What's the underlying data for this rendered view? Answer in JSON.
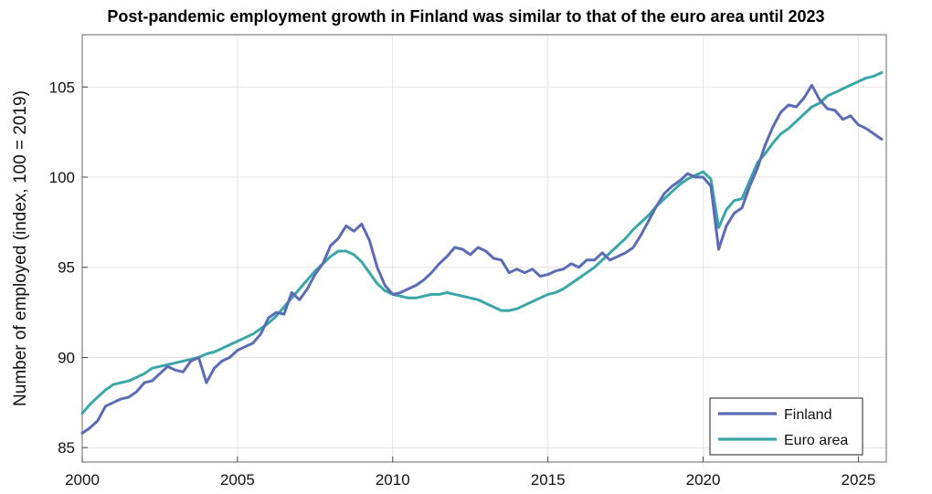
{
  "chart_data": {
    "type": "line",
    "title": "Post-pandemic employment growth in Finland was similar to that of the euro area until 2023",
    "xlabel": "",
    "ylabel": "Number of employed (index, 100 = 2019)",
    "xlim": [
      2000,
      2025.9
    ],
    "ylim": [
      84.2,
      107.9
    ],
    "xticks": [
      2000,
      2005,
      2010,
      2015,
      2020,
      2025
    ],
    "yticks": [
      85,
      90,
      95,
      100,
      105
    ],
    "grid": true,
    "legend_position": "bottom-right",
    "series": [
      {
        "name": "Finland",
        "color": "#5b6bb5",
        "points": [
          [
            2000.0,
            85.8
          ],
          [
            2000.25,
            86.1
          ],
          [
            2000.5,
            86.5
          ],
          [
            2000.75,
            87.3
          ],
          [
            2001.0,
            87.5
          ],
          [
            2001.25,
            87.7
          ],
          [
            2001.5,
            87.8
          ],
          [
            2001.75,
            88.1
          ],
          [
            2002.0,
            88.6
          ],
          [
            2002.25,
            88.7
          ],
          [
            2002.5,
            89.1
          ],
          [
            2002.75,
            89.5
          ],
          [
            2003.0,
            89.3
          ],
          [
            2003.25,
            89.2
          ],
          [
            2003.5,
            89.8
          ],
          [
            2003.75,
            90.0
          ],
          [
            2004.0,
            88.6
          ],
          [
            2004.25,
            89.4
          ],
          [
            2004.5,
            89.8
          ],
          [
            2004.75,
            90.0
          ],
          [
            2005.0,
            90.4
          ],
          [
            2005.25,
            90.6
          ],
          [
            2005.5,
            90.8
          ],
          [
            2005.75,
            91.3
          ],
          [
            2006.0,
            92.2
          ],
          [
            2006.25,
            92.5
          ],
          [
            2006.5,
            92.4
          ],
          [
            2006.75,
            93.6
          ],
          [
            2007.0,
            93.2
          ],
          [
            2007.25,
            93.8
          ],
          [
            2007.5,
            94.6
          ],
          [
            2007.75,
            95.2
          ],
          [
            2008.0,
            96.2
          ],
          [
            2008.25,
            96.6
          ],
          [
            2008.5,
            97.3
          ],
          [
            2008.75,
            97.0
          ],
          [
            2009.0,
            97.4
          ],
          [
            2009.25,
            96.5
          ],
          [
            2009.5,
            95.0
          ],
          [
            2009.75,
            94.0
          ],
          [
            2010.0,
            93.5
          ],
          [
            2010.25,
            93.6
          ],
          [
            2010.5,
            93.8
          ],
          [
            2010.75,
            94.0
          ],
          [
            2011.0,
            94.3
          ],
          [
            2011.25,
            94.7
          ],
          [
            2011.5,
            95.2
          ],
          [
            2011.75,
            95.6
          ],
          [
            2012.0,
            96.1
          ],
          [
            2012.25,
            96.0
          ],
          [
            2012.5,
            95.7
          ],
          [
            2012.75,
            96.1
          ],
          [
            2013.0,
            95.9
          ],
          [
            2013.25,
            95.5
          ],
          [
            2013.5,
            95.4
          ],
          [
            2013.75,
            94.7
          ],
          [
            2014.0,
            94.9
          ],
          [
            2014.25,
            94.7
          ],
          [
            2014.5,
            94.9
          ],
          [
            2014.75,
            94.5
          ],
          [
            2015.0,
            94.6
          ],
          [
            2015.25,
            94.8
          ],
          [
            2015.5,
            94.9
          ],
          [
            2015.75,
            95.2
          ],
          [
            2016.0,
            95.0
          ],
          [
            2016.25,
            95.4
          ],
          [
            2016.5,
            95.4
          ],
          [
            2016.75,
            95.8
          ],
          [
            2017.0,
            95.4
          ],
          [
            2017.25,
            95.6
          ],
          [
            2017.5,
            95.8
          ],
          [
            2017.75,
            96.1
          ],
          [
            2018.0,
            96.8
          ],
          [
            2018.25,
            97.6
          ],
          [
            2018.5,
            98.4
          ],
          [
            2018.75,
            99.1
          ],
          [
            2019.0,
            99.5
          ],
          [
            2019.25,
            99.8
          ],
          [
            2019.5,
            100.2
          ],
          [
            2019.75,
            100.0
          ],
          [
            2020.0,
            100.0
          ],
          [
            2020.25,
            99.5
          ],
          [
            2020.5,
            96.0
          ],
          [
            2020.75,
            97.3
          ],
          [
            2021.0,
            98.0
          ],
          [
            2021.25,
            98.3
          ],
          [
            2021.5,
            99.5
          ],
          [
            2021.75,
            100.5
          ],
          [
            2022.0,
            101.8
          ],
          [
            2022.25,
            102.8
          ],
          [
            2022.5,
            103.6
          ],
          [
            2022.75,
            104.0
          ],
          [
            2023.0,
            103.9
          ],
          [
            2023.25,
            104.4
          ],
          [
            2023.5,
            105.1
          ],
          [
            2023.75,
            104.3
          ],
          [
            2024.0,
            103.8
          ],
          [
            2024.25,
            103.7
          ],
          [
            2024.5,
            103.2
          ],
          [
            2024.75,
            103.4
          ],
          [
            2025.0,
            102.9
          ],
          [
            2025.25,
            102.7
          ],
          [
            2025.5,
            102.4
          ],
          [
            2025.75,
            102.1
          ]
        ]
      },
      {
        "name": "Euro area",
        "color": "#3aa6a8",
        "points": [
          [
            2000.0,
            86.9
          ],
          [
            2000.25,
            87.4
          ],
          [
            2000.5,
            87.8
          ],
          [
            2000.75,
            88.2
          ],
          [
            2001.0,
            88.5
          ],
          [
            2001.25,
            88.6
          ],
          [
            2001.5,
            88.7
          ],
          [
            2001.75,
            88.9
          ],
          [
            2002.0,
            89.1
          ],
          [
            2002.25,
            89.4
          ],
          [
            2002.5,
            89.5
          ],
          [
            2002.75,
            89.6
          ],
          [
            2003.0,
            89.7
          ],
          [
            2003.25,
            89.8
          ],
          [
            2003.5,
            89.9
          ],
          [
            2003.75,
            90.0
          ],
          [
            2004.0,
            90.2
          ],
          [
            2004.25,
            90.3
          ],
          [
            2004.5,
            90.5
          ],
          [
            2004.75,
            90.7
          ],
          [
            2005.0,
            90.9
          ],
          [
            2005.25,
            91.1
          ],
          [
            2005.5,
            91.3
          ],
          [
            2005.75,
            91.6
          ],
          [
            2006.0,
            91.9
          ],
          [
            2006.25,
            92.3
          ],
          [
            2006.5,
            92.8
          ],
          [
            2006.75,
            93.3
          ],
          [
            2007.0,
            93.8
          ],
          [
            2007.25,
            94.3
          ],
          [
            2007.5,
            94.8
          ],
          [
            2007.75,
            95.2
          ],
          [
            2008.0,
            95.6
          ],
          [
            2008.25,
            95.9
          ],
          [
            2008.5,
            95.9
          ],
          [
            2008.75,
            95.7
          ],
          [
            2009.0,
            95.3
          ],
          [
            2009.25,
            94.7
          ],
          [
            2009.5,
            94.1
          ],
          [
            2009.75,
            93.7
          ],
          [
            2010.0,
            93.5
          ],
          [
            2010.25,
            93.4
          ],
          [
            2010.5,
            93.3
          ],
          [
            2010.75,
            93.3
          ],
          [
            2011.0,
            93.4
          ],
          [
            2011.25,
            93.5
          ],
          [
            2011.5,
            93.5
          ],
          [
            2011.75,
            93.6
          ],
          [
            2012.0,
            93.5
          ],
          [
            2012.25,
            93.4
          ],
          [
            2012.5,
            93.3
          ],
          [
            2012.75,
            93.2
          ],
          [
            2013.0,
            93.0
          ],
          [
            2013.25,
            92.8
          ],
          [
            2013.5,
            92.6
          ],
          [
            2013.75,
            92.6
          ],
          [
            2014.0,
            92.7
          ],
          [
            2014.25,
            92.9
          ],
          [
            2014.5,
            93.1
          ],
          [
            2014.75,
            93.3
          ],
          [
            2015.0,
            93.5
          ],
          [
            2015.25,
            93.6
          ],
          [
            2015.5,
            93.8
          ],
          [
            2015.75,
            94.1
          ],
          [
            2016.0,
            94.4
          ],
          [
            2016.25,
            94.7
          ],
          [
            2016.5,
            95.0
          ],
          [
            2016.75,
            95.4
          ],
          [
            2017.0,
            95.8
          ],
          [
            2017.25,
            96.2
          ],
          [
            2017.5,
            96.6
          ],
          [
            2017.75,
            97.1
          ],
          [
            2018.0,
            97.5
          ],
          [
            2018.25,
            97.9
          ],
          [
            2018.5,
            98.4
          ],
          [
            2018.75,
            98.8
          ],
          [
            2019.0,
            99.2
          ],
          [
            2019.25,
            99.6
          ],
          [
            2019.5,
            99.9
          ],
          [
            2019.75,
            100.1
          ],
          [
            2020.0,
            100.3
          ],
          [
            2020.25,
            99.9
          ],
          [
            2020.5,
            97.2
          ],
          [
            2020.75,
            98.2
          ],
          [
            2021.0,
            98.7
          ],
          [
            2021.25,
            98.8
          ],
          [
            2021.5,
            99.8
          ],
          [
            2021.75,
            100.8
          ],
          [
            2022.0,
            101.3
          ],
          [
            2022.25,
            101.9
          ],
          [
            2022.5,
            102.4
          ],
          [
            2022.75,
            102.7
          ],
          [
            2023.0,
            103.1
          ],
          [
            2023.25,
            103.5
          ],
          [
            2023.5,
            103.9
          ],
          [
            2023.75,
            104.1
          ],
          [
            2024.0,
            104.5
          ],
          [
            2024.25,
            104.7
          ],
          [
            2024.5,
            104.9
          ],
          [
            2024.75,
            105.1
          ],
          [
            2025.0,
            105.3
          ],
          [
            2025.25,
            105.5
          ],
          [
            2025.5,
            105.6
          ],
          [
            2025.75,
            105.8
          ]
        ]
      }
    ]
  }
}
